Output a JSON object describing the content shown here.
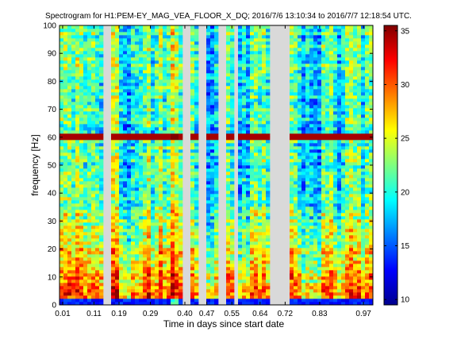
{
  "chart_data": {
    "type": "heatmap",
    "title": "Spectrogram for H1:PEM-EY_MAG_VEA_FLOOR_X_DQ;  2016/7/6 13:10:34 to 2016/7/7 12:18:54 UTC.",
    "xlabel": "Time in days since start date",
    "ylabel": "frequency [Hz]",
    "xlim": [
      0.0,
      1.0
    ],
    "ylim": [
      0,
      100
    ],
    "x_ticks": [
      {
        "value": 0.01,
        "label": "0.01"
      },
      {
        "value": 0.11,
        "label": "0.11"
      },
      {
        "value": 0.19,
        "label": "0.19"
      },
      {
        "value": 0.29,
        "label": "0.29"
      },
      {
        "value": 0.4,
        "label": "0.40"
      },
      {
        "value": 0.47,
        "label": "0.47"
      },
      {
        "value": 0.55,
        "label": "0.55"
      },
      {
        "value": 0.64,
        "label": "0.64"
      },
      {
        "value": 0.72,
        "label": "0.72"
      },
      {
        "value": 0.83,
        "label": "0.83"
      },
      {
        "value": 0.97,
        "label": "0.97"
      }
    ],
    "y_ticks": [
      0,
      10,
      20,
      30,
      40,
      50,
      60,
      70,
      80,
      90,
      100
    ],
    "colorbar": {
      "colormap": "jet",
      "range": [
        9.5,
        35.5
      ],
      "ticks": [
        10,
        15,
        20,
        25,
        30,
        35
      ]
    },
    "data_gaps": [
      [
        0.133,
        0.163
      ],
      [
        0.394,
        0.414
      ],
      [
        0.447,
        0.467
      ],
      [
        0.508,
        0.537
      ],
      [
        0.562,
        0.575
      ],
      [
        0.675,
        0.736
      ]
    ],
    "strong_lines_hz": [
      60,
      59.5
    ],
    "missing_color": "#d9d9d9"
  }
}
